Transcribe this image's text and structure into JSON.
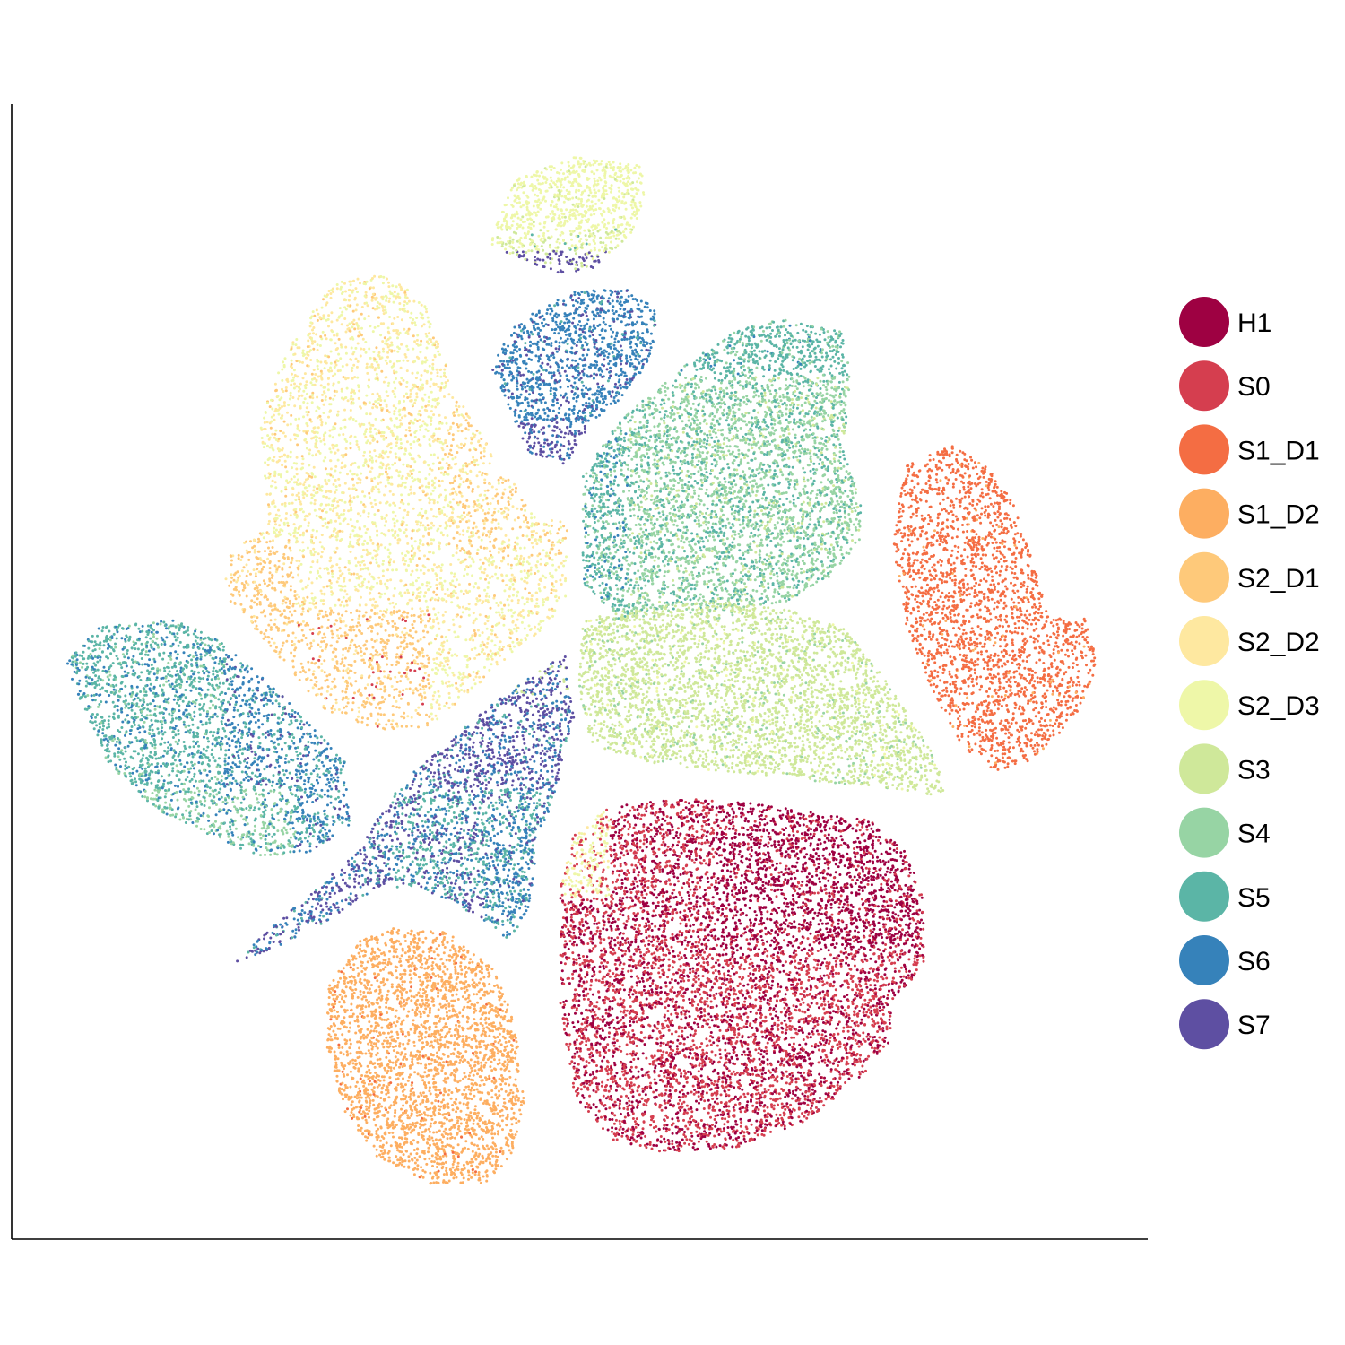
{
  "chart_data": {
    "type": "scatter",
    "title": "",
    "xlabel": "",
    "ylabel": "",
    "grid": false,
    "axes": {
      "ticks": false,
      "tick_labels": false
    },
    "legend": {
      "position": "right"
    },
    "categories": [
      "H1",
      "S0",
      "S1_D1",
      "S1_D2",
      "S2_D1",
      "S2_D2",
      "S2_D3",
      "S3",
      "S4",
      "S5",
      "S6",
      "S7"
    ],
    "colors": {
      "H1": "#9E0142",
      "S0": "#D53E4F",
      "S1_D1": "#F46D43",
      "S1_D2": "#FDAE61",
      "S2_D1": "#FEE08B",
      "S2_D2": "#FFFFBF",
      "S2_D3": "#E6F598",
      "S3": "#ABDDA4",
      "S4": "#66C2A5",
      "S5": "#3288BD",
      "S6": "#5E4FA2",
      "S7": "#5E4FA2"
    },
    "legend_colors": [
      "#9E0142",
      "#D53E4F",
      "#F46D43",
      "#FDAE61",
      "#FEC97A",
      "#FEE8A0",
      "#EEF7A8",
      "#CFE89A",
      "#97D4A4",
      "#5BB5A6",
      "#3682BA",
      "#5E4FA2"
    ]
  }
}
